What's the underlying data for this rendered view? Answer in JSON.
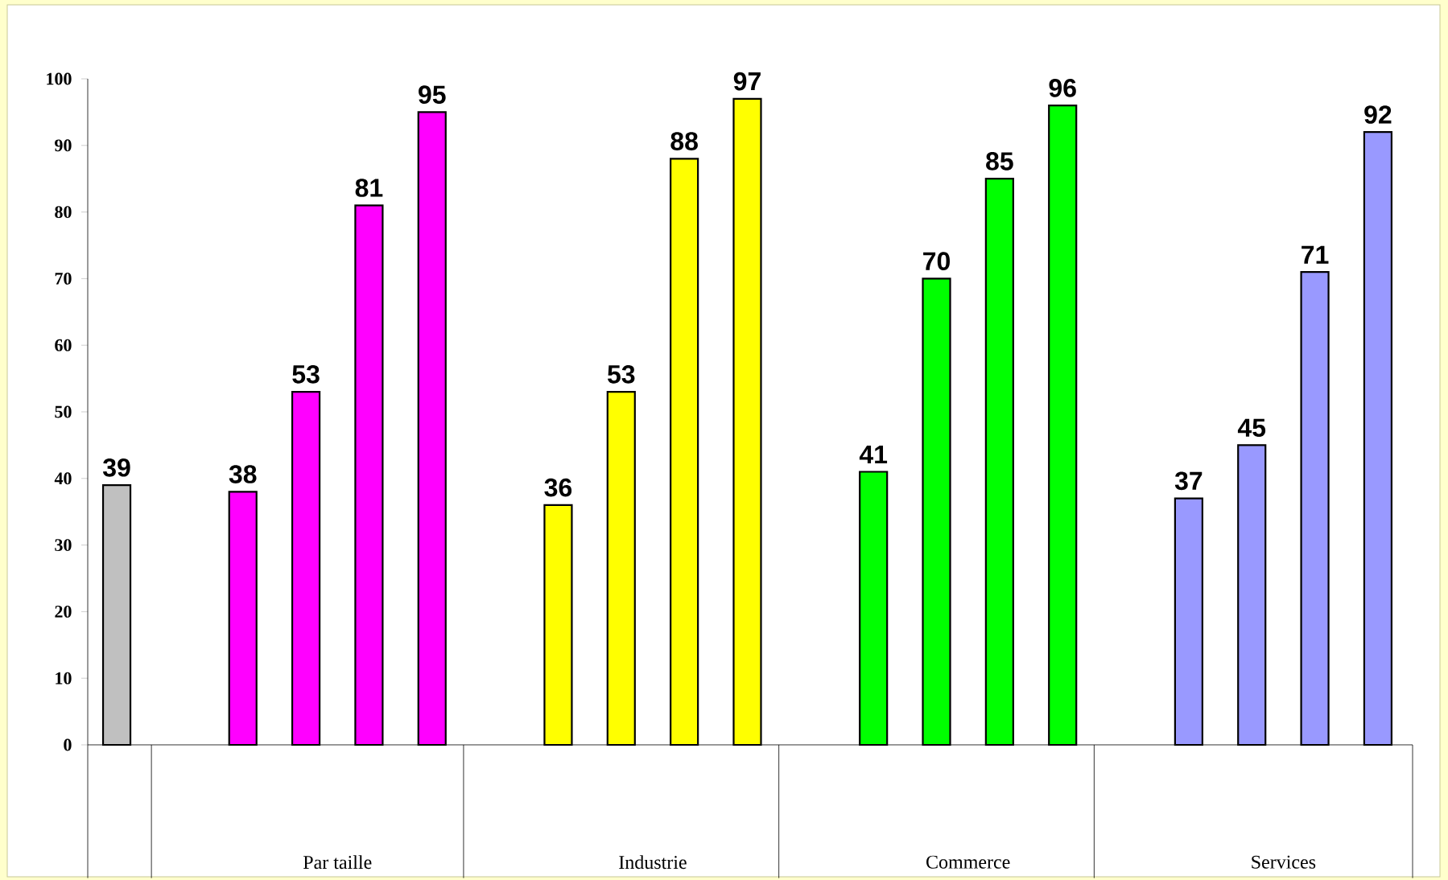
{
  "chart_data": {
    "type": "bar",
    "categories": [
      null,
      null,
      null,
      null,
      null,
      null,
      null,
      null,
      null,
      null,
      null,
      null,
      null,
      null,
      null,
      null,
      null
    ],
    "values": [
      39,
      38,
      53,
      81,
      95,
      36,
      53,
      88,
      97,
      41,
      70,
      85,
      96,
      37,
      45,
      71,
      92
    ],
    "colors": [
      "#c0c0c0",
      "#ff00ff",
      "#ff00ff",
      "#ff00ff",
      "#ff00ff",
      "#ffff00",
      "#ffff00",
      "#ffff00",
      "#ffff00",
      "#00ff00",
      "#00ff00",
      "#00ff00",
      "#00ff00",
      "#9999ff",
      "#9999ff",
      "#9999ff",
      "#9999ff"
    ],
    "ylim": [
      0,
      100
    ],
    "yticks": [
      0,
      10,
      20,
      30,
      40,
      50,
      60,
      70,
      80,
      90,
      100
    ],
    "data_labels": true,
    "tick_labels": "y",
    "annotations": [
      "Par taille",
      "Industrie",
      "Commerce",
      "Services"
    ]
  }
}
